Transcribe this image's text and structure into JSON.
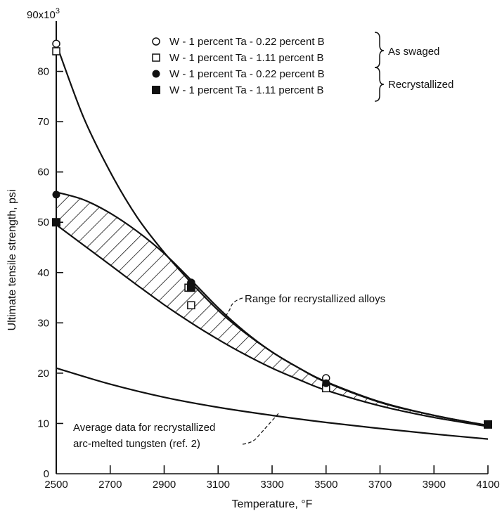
{
  "chart_data": {
    "type": "scatter",
    "xlabel": "Temperature, °F",
    "ylabel": "Ultimate tensile strength, psi",
    "y_multiplier_label": "90x10",
    "y_multiplier_exp": "3",
    "xlim": [
      2500,
      4100
    ],
    "ylim": [
      0,
      90000
    ],
    "x_ticks": [
      2500,
      2700,
      2900,
      3100,
      3300,
      3500,
      3700,
      3900,
      4100
    ],
    "y_ticks": [
      0,
      10,
      20,
      30,
      40,
      50,
      60,
      70,
      80
    ],
    "grid": false,
    "legend_position": "top-right",
    "series": [
      {
        "name": "W - 1 percent Ta - 0.22 percent B",
        "group": "As swaged",
        "marker": "open-circle",
        "points": [
          [
            2500,
            85500
          ],
          [
            3000,
            38000
          ],
          [
            3500,
            19000
          ]
        ]
      },
      {
        "name": "W - 1 percent Ta - 1.11 percent B",
        "group": "As swaged",
        "marker": "open-square",
        "points": [
          [
            2500,
            84000
          ],
          [
            2990,
            37000
          ],
          [
            3000,
            33500
          ],
          [
            3500,
            17000
          ]
        ]
      },
      {
        "name": "W - 1 percent Ta - 0.22 percent B",
        "group": "Recrystallized",
        "marker": "filled-circle",
        "points": [
          [
            2500,
            55500
          ],
          [
            3000,
            38000
          ],
          [
            3500,
            18000
          ]
        ]
      },
      {
        "name": "W - 1 percent Ta - 1.11 percent B",
        "group": "Recrystallized",
        "marker": "filled-square",
        "points": [
          [
            2500,
            50000
          ],
          [
            3000,
            37000
          ],
          [
            4100,
            9800
          ]
        ]
      }
    ],
    "legend_groups": [
      "As swaged",
      "Recrystallized"
    ],
    "curves": [
      {
        "id": "as-swaged-curve",
        "points": [
          [
            2500,
            85500
          ],
          [
            2600,
            71000
          ],
          [
            2700,
            60000
          ],
          [
            2800,
            51000
          ],
          [
            2900,
            44000
          ],
          [
            3000,
            38000
          ],
          [
            3100,
            32500
          ],
          [
            3200,
            28000
          ],
          [
            3300,
            24200
          ],
          [
            3400,
            21000
          ],
          [
            3500,
            18300
          ],
          [
            3700,
            14300
          ],
          [
            3900,
            11600
          ],
          [
            4100,
            9600
          ]
        ]
      },
      {
        "id": "range-upper",
        "points": [
          [
            2500,
            56000
          ],
          [
            2600,
            54500
          ],
          [
            2700,
            51800
          ],
          [
            2800,
            48200
          ],
          [
            2900,
            43800
          ],
          [
            3000,
            38500
          ],
          [
            3100,
            33000
          ],
          [
            3200,
            28200
          ],
          [
            3300,
            24200
          ],
          [
            3400,
            21000
          ],
          [
            3500,
            18200
          ],
          [
            3700,
            14200
          ],
          [
            3900,
            11600
          ],
          [
            4100,
            9600
          ]
        ]
      },
      {
        "id": "range-lower",
        "points": [
          [
            2500,
            49500
          ],
          [
            2600,
            45500
          ],
          [
            2700,
            41500
          ],
          [
            2800,
            37500
          ],
          [
            2900,
            33600
          ],
          [
            3000,
            30000
          ],
          [
            3100,
            26700
          ],
          [
            3200,
            23700
          ],
          [
            3300,
            21000
          ],
          [
            3400,
            18700
          ],
          [
            3500,
            16600
          ],
          [
            3700,
            13500
          ],
          [
            3900,
            11200
          ],
          [
            4100,
            9400
          ]
        ]
      },
      {
        "id": "tungsten-average",
        "points": [
          [
            2500,
            21000
          ],
          [
            2700,
            17800
          ],
          [
            2900,
            15200
          ],
          [
            3100,
            13200
          ],
          [
            3300,
            11600
          ],
          [
            3500,
            10200
          ],
          [
            3700,
            9000
          ],
          [
            3900,
            7900
          ],
          [
            4100,
            6900
          ]
        ]
      }
    ],
    "annotations": {
      "range": "Range for recrystallized alloys",
      "average_line1": "Average data for recrystallized",
      "average_line2": "arc-melted tungsten (ref. 2)"
    }
  }
}
